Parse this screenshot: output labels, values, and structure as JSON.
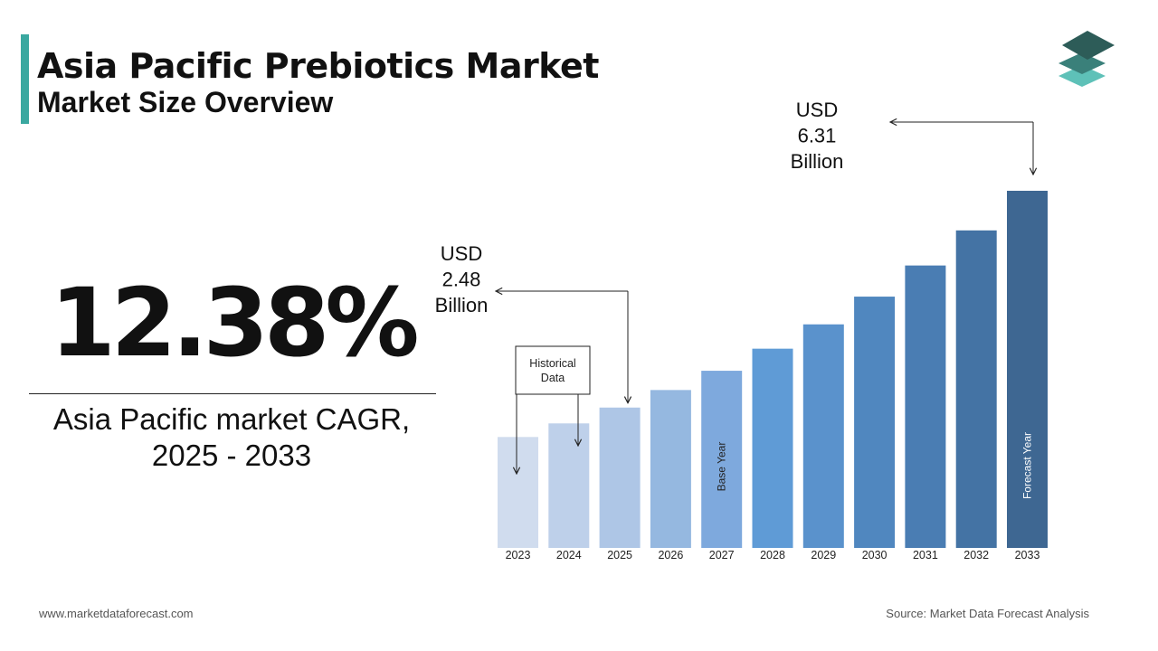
{
  "header": {
    "title": "Asia Pacific Prebiotics Market",
    "subtitle": "Market Size Overview"
  },
  "colors": {
    "accent": "#3aa8a0",
    "logo_dark": "#2d5c58",
    "logo_mid": "#3a807a",
    "logo_light": "#5ec1b8"
  },
  "cagr": {
    "value": "12.38%",
    "label": "Asia Pacific market CAGR, 2025 - 2033"
  },
  "chart_data": {
    "type": "bar",
    "categories": [
      "2023",
      "2024",
      "2025",
      "2026",
      "2027",
      "2028",
      "2029",
      "2030",
      "2031",
      "2032",
      "2033"
    ],
    "values": [
      1.96,
      2.2,
      2.48,
      2.79,
      3.13,
      3.52,
      3.95,
      4.44,
      4.99,
      5.61,
      6.31
    ],
    "bar_colors": [
      "#d0dcee",
      "#bed0ea",
      "#aec6e6",
      "#95b8e0",
      "#7ea9dd",
      "#5f9bd6",
      "#5a92cc",
      "#5087bf",
      "#4a7db3",
      "#4473a4",
      "#3e6792"
    ],
    "ylim": [
      0,
      7.2
    ],
    "bar_labels": {
      "2027": "Base Year",
      "2033": "Forecast Year"
    },
    "callouts": [
      {
        "year": "2025",
        "lines": [
          "USD",
          "2.48",
          "Billion"
        ]
      },
      {
        "year": "2033",
        "lines": [
          "USD",
          "6.31",
          "Billion"
        ]
      }
    ],
    "historical_box": {
      "lines": [
        "Historical",
        "Data"
      ],
      "years": [
        "2023",
        "2024",
        "2025"
      ]
    }
  },
  "footer": {
    "website": "www.marketdataforecast.com",
    "source": "Source: Market Data Forecast Analysis"
  }
}
